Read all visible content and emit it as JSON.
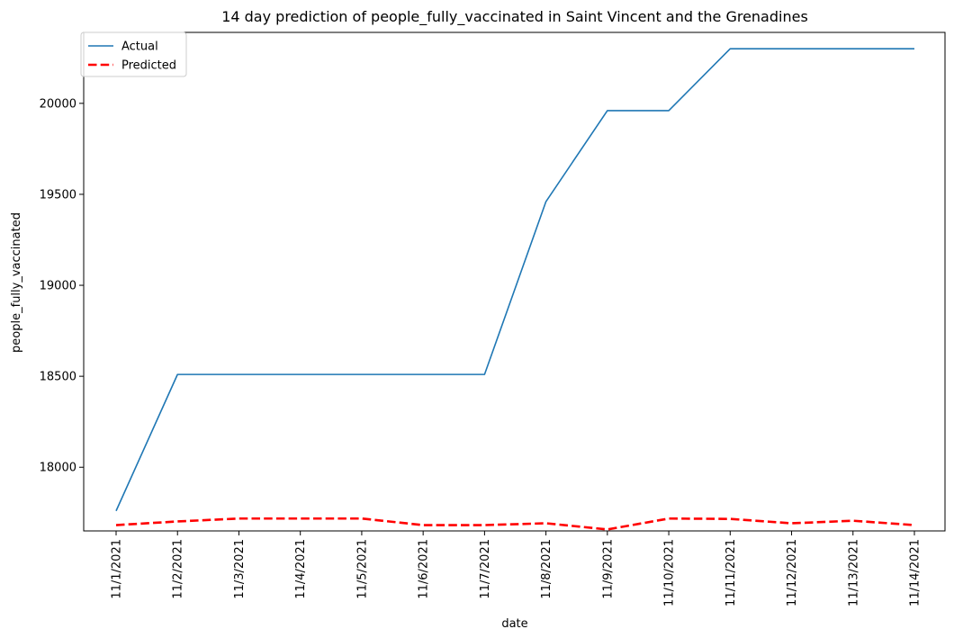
{
  "chart_data": {
    "type": "line",
    "title": "14 day prediction of people_fully_vaccinated in Saint Vincent and the Grenadines",
    "xlabel": "date",
    "ylabel": "people_fully_vaccinated",
    "categories": [
      "11/1/2021",
      "11/2/2021",
      "11/3/2021",
      "11/4/2021",
      "11/5/2021",
      "11/6/2021",
      "11/7/2021",
      "11/8/2021",
      "11/9/2021",
      "11/10/2021",
      "11/11/2021",
      "11/12/2021",
      "11/13/2021",
      "11/14/2021"
    ],
    "yticks": [
      18000,
      18500,
      19000,
      19500,
      20000
    ],
    "ylim": [
      17650,
      20390
    ],
    "grid": false,
    "legend_position": "top-left",
    "series": [
      {
        "name": "Actual",
        "color": "#1f77b4",
        "style": "solid",
        "values": [
          17760,
          18510,
          18510,
          18510,
          18510,
          18510,
          18510,
          19460,
          19960,
          19960,
          20300,
          20300,
          20300,
          20300
        ]
      },
      {
        "name": "Predicted",
        "color": "#ff0000",
        "style": "dashed",
        "values": [
          17682,
          17702,
          17718,
          17718,
          17718,
          17682,
          17682,
          17692,
          17658,
          17718,
          17716,
          17692,
          17706,
          17682
        ]
      }
    ]
  }
}
